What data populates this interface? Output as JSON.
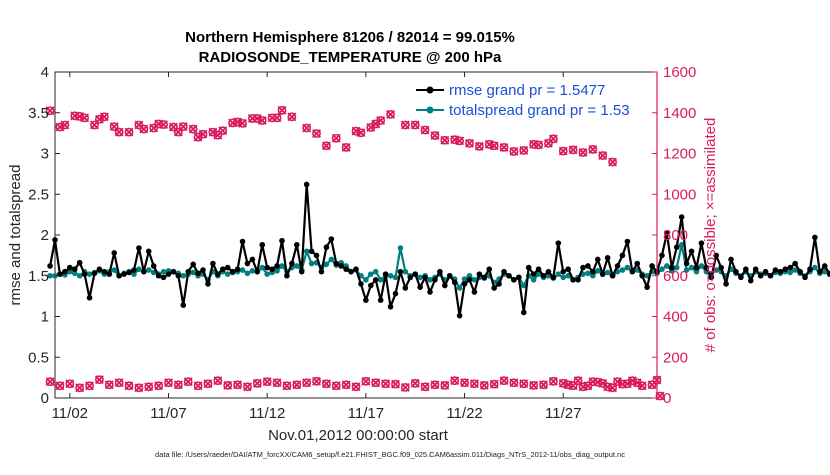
{
  "chart_data": {
    "type": "line",
    "title": "Northern Hemisphere 81206 / 82014 = 99.015%",
    "subtitle": "RADIOSONDE_TEMPERATURE @ 200 hPa",
    "xlabel": "Nov.01,2012 00:00:00 start",
    "ylabel": "rmse and totalspread",
    "ylabel_right": "# of obs: o=possible; ×=assimilated",
    "footnote": "data file: /Users/raeder/DAI/ATM_forcXX/CAM6_setup/f.e21.FHIST_BGC.f09_025.CAM6assim.011/Diags_NTrS_2012-11/obs_diag_output.nc",
    "x_range_days": [
      0.25,
      30.75
    ],
    "x_ticks": [
      {
        "day": 1,
        "label": "11/02"
      },
      {
        "day": 6,
        "label": "11/07"
      },
      {
        "day": 11,
        "label": "11/12"
      },
      {
        "day": 16,
        "label": "11/17"
      },
      {
        "day": 21,
        "label": "11/22"
      },
      {
        "day": 26,
        "label": "11/27"
      }
    ],
    "ylim": [
      0,
      4
    ],
    "y_ticks": [
      "0",
      "0.5",
      "1",
      "1.5",
      "2",
      "2.5",
      "3",
      "3.5",
      "4"
    ],
    "ylim_right": [
      0,
      1600
    ],
    "y_ticks_right": [
      "0",
      "200",
      "400",
      "600",
      "800",
      "1000",
      "1200",
      "1400",
      "1600"
    ],
    "time_step_days": 0.25,
    "series": [
      {
        "name": "rmse grand pr = 1.5477",
        "color": "#000000",
        "values": [
          1.62,
          1.94,
          1.52,
          1.55,
          1.6,
          1.58,
          1.66,
          1.52,
          1.23,
          1.53,
          1.58,
          1.55,
          1.52,
          1.78,
          1.5,
          1.52,
          1.54,
          1.57,
          1.84,
          1.55,
          1.8,
          1.62,
          1.5,
          1.48,
          1.52,
          1.55,
          1.5,
          1.14,
          1.55,
          1.64,
          1.53,
          1.57,
          1.4,
          1.65,
          1.52,
          1.58,
          1.6,
          1.55,
          1.58,
          1.92,
          1.65,
          1.7,
          1.55,
          1.88,
          1.6,
          1.58,
          1.62,
          1.93,
          1.5,
          1.65,
          1.88,
          1.55,
          2.62,
          1.8,
          1.75,
          1.55,
          1.85,
          1.95,
          1.65,
          1.62,
          1.58,
          1.55,
          1.58,
          1.4,
          1.2,
          1.38,
          1.45,
          1.2,
          1.52,
          1.12,
          1.28,
          1.55,
          1.35,
          1.48,
          1.52,
          1.36,
          1.48,
          1.3,
          1.45,
          1.55,
          1.38,
          1.5,
          1.42,
          1.01,
          1.4,
          1.45,
          1.3,
          1.52,
          1.48,
          1.58,
          1.35,
          1.4,
          1.55,
          1.5,
          1.45,
          1.48,
          1.05,
          1.6,
          1.52,
          1.58,
          1.5,
          1.55,
          1.48,
          1.9,
          1.55,
          1.58,
          1.45,
          1.45,
          1.6,
          1.62,
          1.55,
          1.7,
          1.52,
          1.72,
          1.5,
          1.62,
          1.75,
          1.92,
          1.55,
          1.65,
          1.5,
          1.36,
          1.62,
          1.55,
          1.75,
          2.02,
          1.6,
          1.85,
          2.22,
          1.65,
          1.8,
          1.6,
          1.9,
          1.6,
          1.48,
          1.75,
          1.6,
          1.4,
          1.7,
          1.55,
          1.48,
          1.58,
          1.44,
          1.58,
          1.5,
          1.55,
          1.5,
          1.57,
          1.55,
          1.58,
          1.6,
          1.65,
          1.55,
          1.48,
          1.58,
          1.97,
          1.55,
          1.62,
          1.52,
          1.7,
          1.86,
          1.55,
          1.65,
          1.5,
          1.62,
          1.58,
          1.68,
          2.12,
          1.9,
          1.6,
          1.62,
          1.55,
          1.65,
          1.48,
          1.52,
          1.58,
          1.72
        ]
      },
      {
        "name": "totalspread grand pr = 1.53",
        "color": "#008080",
        "values": [
          1.5,
          1.5,
          1.52,
          1.51,
          1.55,
          1.53,
          1.5,
          1.55,
          1.52,
          1.54,
          1.56,
          1.52,
          1.55,
          1.57,
          1.5,
          1.53,
          1.55,
          1.52,
          1.58,
          1.55,
          1.57,
          1.54,
          1.52,
          1.55,
          1.56,
          1.55,
          1.53,
          1.5,
          1.52,
          1.54,
          1.5,
          1.52,
          1.45,
          1.55,
          1.5,
          1.55,
          1.52,
          1.54,
          1.55,
          1.57,
          1.53,
          1.56,
          1.55,
          1.6,
          1.52,
          1.54,
          1.56,
          1.62,
          1.55,
          1.6,
          1.62,
          1.57,
          1.8,
          1.65,
          1.66,
          1.6,
          1.64,
          1.7,
          1.63,
          1.66,
          1.62,
          1.55,
          1.57,
          1.5,
          1.45,
          1.52,
          1.55,
          1.45,
          1.5,
          1.5,
          1.48,
          1.84,
          1.55,
          1.5,
          1.52,
          1.48,
          1.5,
          1.45,
          1.48,
          1.52,
          1.45,
          1.5,
          1.46,
          1.35,
          1.46,
          1.5,
          1.45,
          1.48,
          1.47,
          1.5,
          1.42,
          1.46,
          1.52,
          1.5,
          1.45,
          1.48,
          1.38,
          1.5,
          1.45,
          1.52,
          1.48,
          1.5,
          1.47,
          1.52,
          1.48,
          1.5,
          1.45,
          1.48,
          1.52,
          1.53,
          1.5,
          1.56,
          1.52,
          1.54,
          1.5,
          1.55,
          1.57,
          1.6,
          1.55,
          1.57,
          1.52,
          1.5,
          1.55,
          1.53,
          1.58,
          1.62,
          1.56,
          1.6,
          1.88,
          1.57,
          1.6,
          1.55,
          1.62,
          1.55,
          1.52,
          1.57,
          1.55,
          1.5,
          1.58,
          1.53,
          1.5,
          1.55,
          1.5,
          1.55,
          1.52,
          1.53,
          1.5,
          1.54,
          1.53,
          1.55,
          1.54,
          1.57,
          1.53,
          1.5,
          1.55,
          1.6,
          1.53,
          1.55,
          1.52,
          1.57,
          1.58,
          1.55,
          1.56,
          1.52,
          1.55,
          1.54,
          1.56,
          1.62,
          1.6,
          1.55,
          1.56,
          1.53,
          1.55,
          1.5,
          1.48,
          1.5,
          1.48
        ]
      },
      {
        "name": "obs possible (o) / assimilated (×), upper",
        "axis": "right",
        "color": "#d81b60",
        "values": [
          1410,
          1330,
          1340,
          1385,
          1382,
          1375,
          1340,
          1368,
          1380,
          1332,
          1305,
          1305,
          1340,
          1320,
          1325,
          1345,
          1342,
          1330,
          1305,
          1332,
          1320,
          1280,
          1295,
          1305,
          1290,
          1312,
          1350,
          1355,
          1348,
          1372,
          1372,
          1362,
          1375,
          1375,
          1412,
          1380,
          1325,
          1298,
          1238,
          1275,
          1230,
          1310,
          1302,
          1328,
          1345,
          1362,
          1392,
          1340,
          1340,
          1315,
          1288,
          1265,
          1268,
          1262,
          1250,
          1235,
          1245,
          1238,
          1230,
          1210,
          1215,
          1245,
          1242,
          1250,
          1272,
          1212,
          1218,
          1205,
          1220,
          1190,
          1158
        ],
        "positions_days": [
          0,
          0.5,
          0.75,
          1.25,
          1.5,
          1.75,
          2.25,
          2.5,
          2.75,
          3.25,
          3.5,
          4,
          4.5,
          4.75,
          5.25,
          5.5,
          5.75,
          6.25,
          6.5,
          6.75,
          7.25,
          7.5,
          7.75,
          8.25,
          8.5,
          8.75,
          9.25,
          9.5,
          9.75,
          10.25,
          10.5,
          10.75,
          11.25,
          11.5,
          11.75,
          12.25,
          13,
          13.5,
          14,
          14.5,
          15,
          15.5,
          15.75,
          16.25,
          16.5,
          16.75,
          17.25,
          18,
          18.5,
          19,
          19.5,
          20,
          20.5,
          20.75,
          21.25,
          21.75,
          22.25,
          22.5,
          23,
          23.5,
          24,
          24.5,
          24.75,
          25.25,
          25.5,
          26,
          26.5,
          27,
          27.5,
          28,
          28.5
        ]
      },
      {
        "name": "obs possible (o) / assimilated (×), lower",
        "axis": "right",
        "color": "#d81b60",
        "values": [
          80,
          60,
          70,
          50,
          60,
          90,
          65,
          75,
          60,
          50,
          55,
          60,
          75,
          65,
          80,
          60,
          70,
          85,
          62,
          65,
          55,
          72,
          80,
          75,
          60,
          65,
          75,
          82,
          70,
          60,
          65,
          55,
          82,
          75,
          70,
          68,
          52,
          72,
          55,
          65,
          62,
          85,
          75,
          70,
          62,
          68,
          85,
          75,
          70,
          62,
          65,
          82,
          72,
          60,
          55,
          80,
          72,
          50,
          68,
          85,
          60,
          65,
          88,
          75,
          70,
          80,
          55,
          78,
          60,
          85,
          65,
          10
        ],
        "positions_days": [
          0,
          0.5,
          1,
          1.5,
          2,
          2.5,
          3,
          3.5,
          4,
          4.5,
          5,
          5.5,
          6,
          6.5,
          7,
          7.5,
          8,
          8.5,
          9,
          9.5,
          10,
          10.5,
          11,
          11.5,
          12,
          12.5,
          13,
          13.5,
          14,
          14.5,
          15,
          15.5,
          16,
          16.5,
          17,
          17.5,
          18,
          18.5,
          19,
          19.5,
          20,
          20.5,
          21,
          21.5,
          22,
          22.5,
          23,
          23.5,
          24,
          24.5,
          25,
          25.5,
          26,
          26.5,
          27,
          27.5,
          28,
          28.5,
          29,
          29.5,
          30,
          30.5,
          30.75,
          29.75,
          29.25,
          28.75,
          28.25,
          27.75,
          27.25,
          26.75,
          26.25,
          30.9
        ]
      }
    ]
  }
}
